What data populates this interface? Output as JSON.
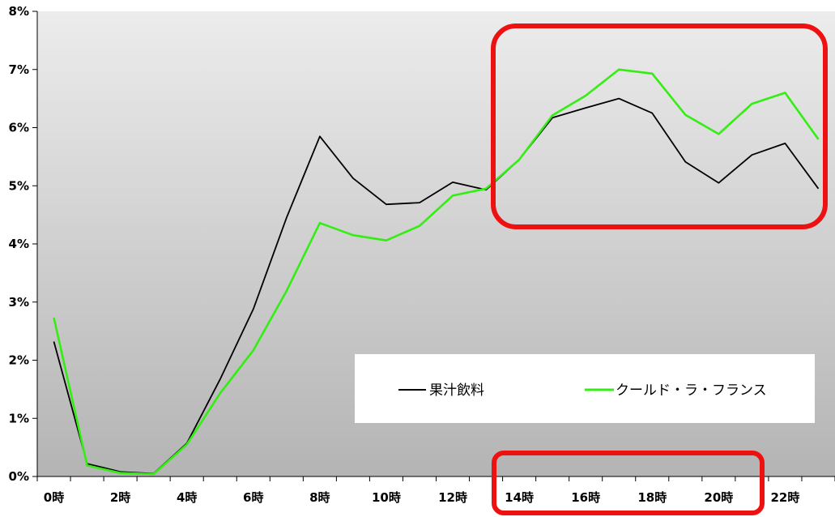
{
  "chart_data": {
    "type": "line",
    "title": "",
    "xlabel": "",
    "ylabel": "",
    "x": [
      0,
      1,
      2,
      3,
      4,
      5,
      6,
      7,
      8,
      9,
      10,
      11,
      12,
      13,
      14,
      15,
      16,
      17,
      18,
      19,
      20,
      21,
      22,
      23
    ],
    "x_tick_labels": [
      "0時",
      "2時",
      "4時",
      "6時",
      "8時",
      "10時",
      "12時",
      "14時",
      "16時",
      "18時",
      "20時",
      "22時"
    ],
    "x_tick_values": [
      0,
      2,
      4,
      6,
      8,
      10,
      12,
      14,
      16,
      18,
      20,
      22
    ],
    "y_tick_labels": [
      "0%",
      "1%",
      "2%",
      "3%",
      "4%",
      "5%",
      "6%",
      "7%",
      "8%"
    ],
    "ylim": [
      0,
      8
    ],
    "xlim": [
      -0.5,
      23.5
    ],
    "grid": false,
    "legend_position": "bottom-right",
    "series": [
      {
        "name": "果汁飲料",
        "color": "#000000",
        "values": [
          2.32,
          0.22,
          0.08,
          0.05,
          0.57,
          1.67,
          2.88,
          4.45,
          5.85,
          5.13,
          4.68,
          4.71,
          5.06,
          4.93,
          5.45,
          6.17,
          6.34,
          6.5,
          6.25,
          5.41,
          5.05,
          5.53,
          5.73,
          4.95
        ]
      },
      {
        "name": "クールド・ラ・フランス",
        "color": "#33ee11",
        "values": [
          2.73,
          0.19,
          0.06,
          0.04,
          0.55,
          1.43,
          2.17,
          3.19,
          4.36,
          4.15,
          4.06,
          4.31,
          4.83,
          4.95,
          5.45,
          6.21,
          6.55,
          7.0,
          6.93,
          6.22,
          5.89,
          6.41,
          6.6,
          5.8
        ]
      }
    ],
    "highlight_color": "#ee1111"
  }
}
